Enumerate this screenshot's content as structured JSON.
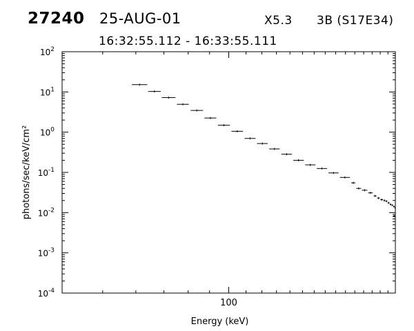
{
  "header": {
    "event_id": "27240",
    "date": "25-AUG-01",
    "flare_class": "X5.3",
    "region": "3B (S17E34)",
    "time_range": "16:32:55.112 - 16:33:55.111"
  },
  "chart_data": {
    "type": "scatter",
    "title": "",
    "xlabel": "Energy (keV)",
    "ylabel": "photons/sec/keV/cm²",
    "xscale": "log",
    "yscale": "log",
    "xlim": [
      40,
      250
    ],
    "ylim": [
      0.0001,
      100
    ],
    "grid": false,
    "x_tick_labels": [
      "100"
    ],
    "y_tick_labels": [
      {
        "base": "10",
        "exp": "-4",
        "value": 0.0001
      },
      {
        "base": "10",
        "exp": "-3",
        "value": 0.001
      },
      {
        "base": "10",
        "exp": "-2",
        "value": 0.01
      },
      {
        "base": "10",
        "exp": "-1",
        "value": 0.1
      },
      {
        "base": "10",
        "exp": "0",
        "value": 1
      },
      {
        "base": "10",
        "exp": "1",
        "value": 10
      },
      {
        "base": "10",
        "exp": "2",
        "value": 100
      }
    ],
    "series": [
      {
        "points": [
          {
            "x_lo": 58.7,
            "x_hi": 63.9,
            "y": 15.2
          },
          {
            "x_lo": 64.2,
            "x_hi": 68.8,
            "y": 10.3
          },
          {
            "x_lo": 69.2,
            "x_hi": 74.6,
            "y": 7.23
          },
          {
            "x_lo": 75.2,
            "x_hi": 80.3,
            "y": 4.93
          },
          {
            "x_lo": 81.1,
            "x_hi": 86.8,
            "y": 3.47
          },
          {
            "x_lo": 87.5,
            "x_hi": 93.4,
            "y": 2.25
          },
          {
            "x_lo": 94.2,
            "x_hi": 100.6,
            "y": 1.49
          },
          {
            "x_lo": 101.5,
            "x_hi": 108.2,
            "y": 1.05
          },
          {
            "x_lo": 109.1,
            "x_hi": 115.9,
            "y": 0.7
          },
          {
            "x_lo": 116.8,
            "x_hi": 123.9,
            "y": 0.522
          },
          {
            "x_lo": 124.9,
            "x_hi": 132.4,
            "y": 0.383
          },
          {
            "x_lo": 133.5,
            "x_hi": 141.6,
            "y": 0.283
          },
          {
            "x_lo": 142.6,
            "x_hi": 151.1,
            "y": 0.2
          },
          {
            "x_lo": 152.2,
            "x_hi": 161.1,
            "y": 0.154
          },
          {
            "x_lo": 162.3,
            "x_hi": 171.7,
            "y": 0.125
          },
          {
            "x_lo": 173,
            "x_hi": 183,
            "y": 0.097
          },
          {
            "x_lo": 184.3,
            "x_hi": 194.7,
            "y": 0.075
          },
          {
            "x_lo": 196.1,
            "x_hi": 200.7,
            "y": 0.055
          },
          {
            "x_lo": 201.6,
            "x_hi": 207.1,
            "y": 0.04
          },
          {
            "x_lo": 207.9,
            "x_hi": 214.3,
            "y": 0.036
          },
          {
            "x_lo": 215.2,
            "x_hi": 220.8,
            "y": 0.031
          },
          {
            "x_lo": 221.7,
            "x_hi": 225.6,
            "y": 0.026
          },
          {
            "x_lo": 226.1,
            "x_hi": 229.6,
            "y": 0.023
          },
          {
            "x_lo": 230.1,
            "x_hi": 233.6,
            "y": 0.021
          },
          {
            "x_lo": 234.1,
            "x_hi": 236.5,
            "y": 0.02
          },
          {
            "x_lo": 236.8,
            "x_hi": 239.3,
            "y": 0.0192
          },
          {
            "x_lo": 239.6,
            "x_hi": 242.1,
            "y": 0.0175
          },
          {
            "x_lo": 242.4,
            "x_hi": 244.4,
            "y": 0.016
          },
          {
            "x_lo": 244.7,
            "x_hi": 246.7,
            "y": 0.0153
          },
          {
            "x_lo": 247,
            "x_hi": 249,
            "y": 0.0142
          },
          {
            "x_lo": 249.2,
            "x_hi": 250,
            "y": 0.0132
          },
          {
            "x_lo": 246.8,
            "x_hi": 250,
            "y": 0.0082
          }
        ]
      }
    ]
  }
}
